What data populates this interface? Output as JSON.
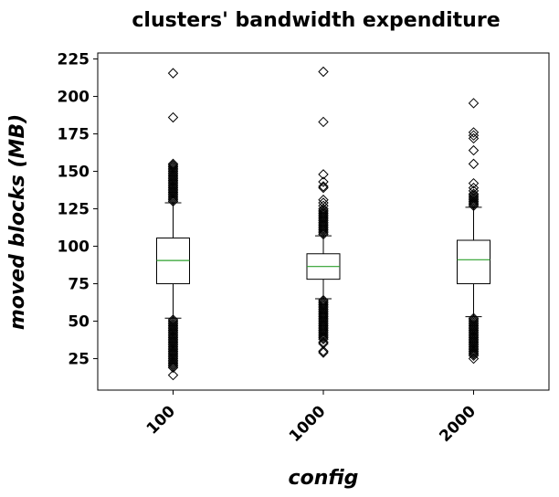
{
  "chart_data": {
    "type": "box",
    "title": "clusters' bandwidth expenditure",
    "xlabel": "config",
    "ylabel": "moved blocks (MB)",
    "categories": [
      "100",
      "1000",
      "2000"
    ],
    "ylim": [
      4,
      229
    ],
    "yticks": [
      25,
      50,
      75,
      100,
      125,
      150,
      175,
      200,
      225
    ],
    "grid": false,
    "colors": {
      "median": "#2ca02c",
      "box": "#000000",
      "flier": "#000000"
    },
    "boxes": [
      {
        "category": "100",
        "q1": 75,
        "median": 90.5,
        "q3": 105.5,
        "whisker_low": 52,
        "whisker_high": 129,
        "outliers": [
          215.5,
          186,
          155,
          154,
          153,
          152,
          151,
          150,
          149,
          148,
          147,
          146,
          145,
          144,
          143,
          142,
          141,
          140,
          139,
          138,
          137,
          136,
          135,
          134,
          133,
          132,
          131,
          130,
          51,
          50,
          49,
          48,
          47,
          46,
          45,
          44,
          43,
          42,
          41,
          40,
          39,
          38,
          37,
          36,
          35,
          34,
          33,
          32,
          31,
          30,
          29,
          28,
          27,
          26,
          25,
          24,
          23,
          22,
          21,
          20,
          19,
          14
        ]
      },
      {
        "category": "1000",
        "q1": 78,
        "median": 86.5,
        "q3": 95,
        "whisker_low": 65,
        "whisker_high": 107,
        "outliers": [
          216.5,
          183,
          148,
          143,
          140,
          139,
          131,
          129,
          127,
          125,
          124,
          123,
          122,
          121,
          120,
          119,
          118,
          117,
          116,
          115,
          114,
          113,
          112,
          111,
          110,
          109,
          108,
          64,
          63,
          62,
          61,
          60,
          59,
          58,
          57,
          56,
          55,
          54,
          53,
          52,
          51,
          50,
          49,
          48,
          47,
          46,
          45,
          44,
          43,
          42,
          41,
          40,
          39,
          38,
          36,
          35,
          30,
          29
        ]
      },
      {
        "category": "2000",
        "q1": 75,
        "median": 91,
        "q3": 104,
        "whisker_low": 53,
        "whisker_high": 126,
        "outliers": [
          195.5,
          176,
          174,
          172,
          164,
          155,
          142,
          139,
          137,
          135,
          134,
          133,
          132,
          131,
          130,
          129,
          128,
          127,
          52,
          51,
          50,
          49,
          48,
          47,
          46,
          45,
          44,
          43,
          42,
          41,
          40,
          39,
          38,
          37,
          36,
          35,
          34,
          33,
          32,
          31,
          30,
          29,
          28,
          27,
          25
        ]
      }
    ]
  }
}
